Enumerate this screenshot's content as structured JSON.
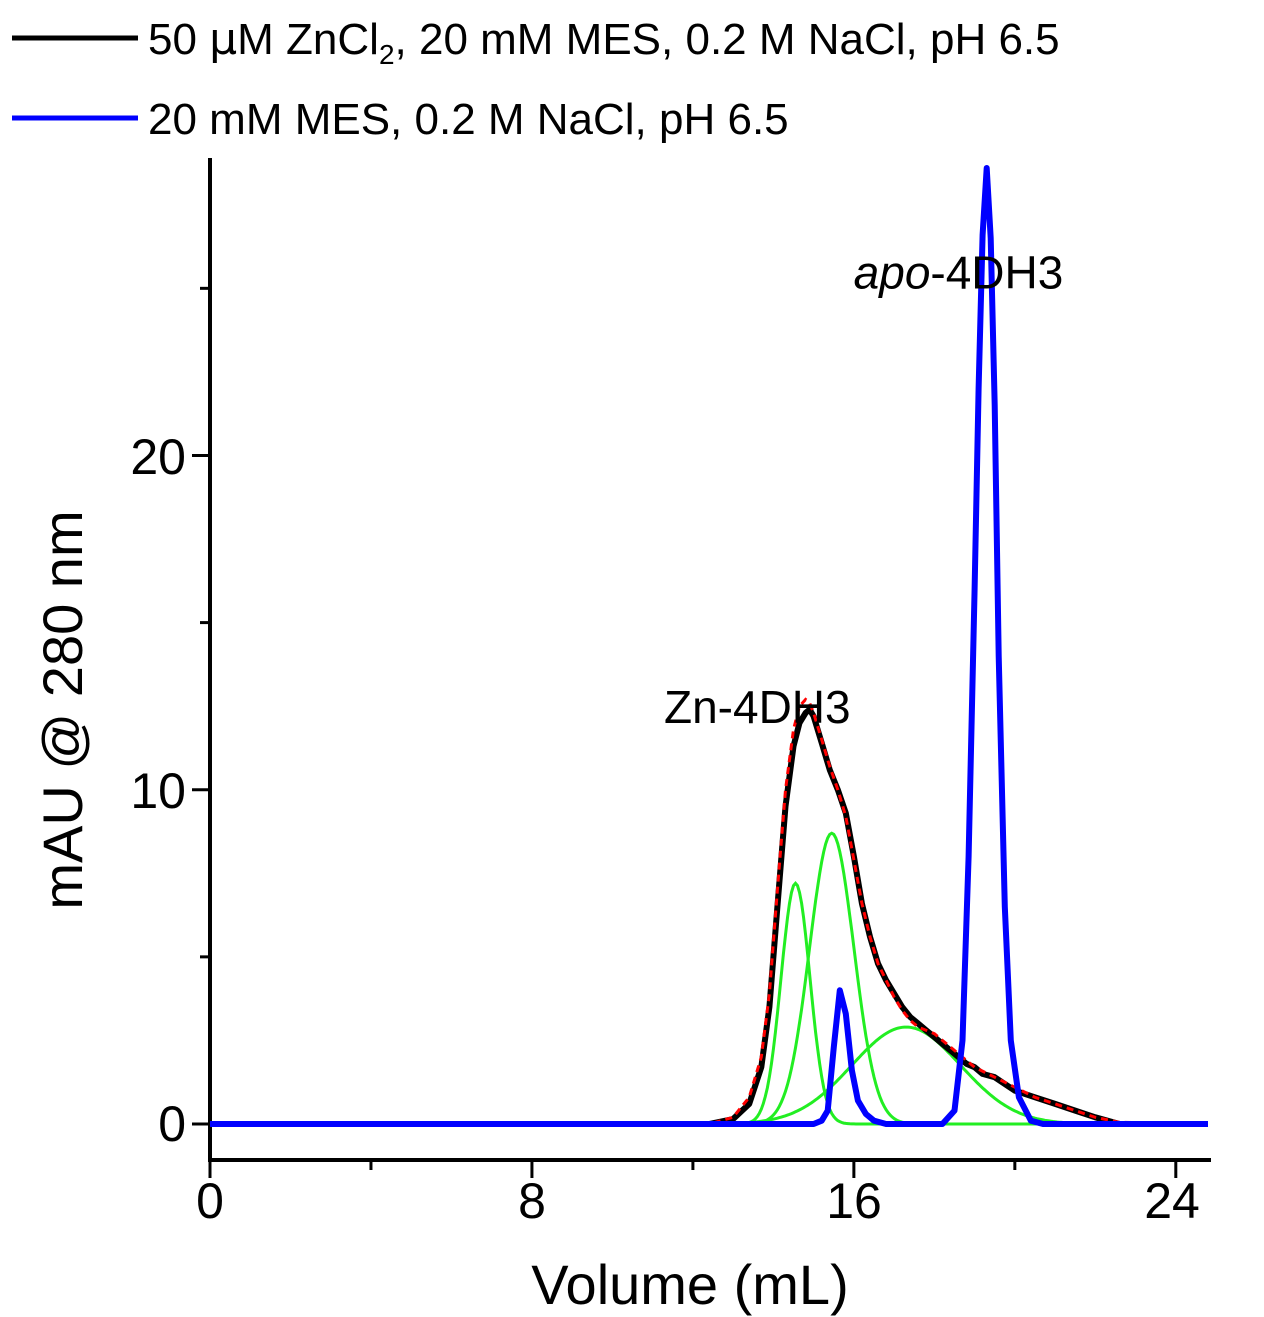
{
  "chart_data": {
    "type": "line",
    "title": "",
    "xlabel": "Volume (mL)",
    "ylabel": "mAU @ 280 nm",
    "xlim": [
      0,
      24.8
    ],
    "ylim": [
      -0.9,
      28.7
    ],
    "x_ticks": [
      "0",
      "8",
      "16",
      "24"
    ],
    "y_ticks": [
      "0",
      "10",
      "20"
    ],
    "legend": {
      "placement": "top-left",
      "entries": [
        {
          "series": "zn",
          "prefix": "50 ",
          "mu": "μ",
          "mid": "M ZnCl",
          "sub": "2",
          "suffix": ", 20 mM MES, 0.2 M NaCl, pH 6.5",
          "color": "#000000"
        },
        {
          "series": "apo",
          "label": "20 mM MES, 0.2 M NaCl, pH 6.5",
          "color": "#0000ff"
        }
      ]
    },
    "annotations": [
      {
        "prefix": "apo",
        "suffix": "-4DH3",
        "x": 18.6,
        "y": 25.0
      },
      {
        "text": "Zn-4DH3",
        "x": 13.6,
        "y": 12.0
      }
    ],
    "series": [
      {
        "name": "50 μM ZnCl2, 20 mM MES, 0.2 M NaCl, pH 6.5",
        "key": "zn",
        "color": "#000000",
        "x": [
          0,
          12.4,
          13.0,
          13.4,
          13.7,
          13.9,
          14.1,
          14.3,
          14.5,
          14.65,
          14.8,
          14.9,
          15.0,
          15.2,
          15.4,
          15.6,
          15.8,
          16.0,
          16.2,
          16.4,
          16.6,
          16.8,
          17.0,
          17.2,
          17.4,
          17.6,
          17.8,
          18.0,
          18.2,
          18.4,
          18.6,
          18.8,
          19.0,
          19.2,
          19.5,
          20.0,
          20.5,
          21.0,
          21.5,
          22.0,
          22.3,
          22.6,
          24.8
        ],
        "y": [
          0,
          0,
          0.15,
          0.6,
          1.7,
          3.5,
          6.5,
          9.5,
          11.3,
          12.0,
          12.3,
          12.4,
          12.2,
          11.4,
          10.6,
          10.0,
          9.3,
          8.0,
          6.6,
          5.6,
          4.8,
          4.3,
          3.9,
          3.5,
          3.2,
          3.0,
          2.8,
          2.6,
          2.4,
          2.2,
          2.0,
          1.8,
          1.7,
          1.5,
          1.4,
          1.0,
          0.8,
          0.6,
          0.4,
          0.2,
          0.1,
          0,
          0
        ]
      },
      {
        "name": "20 mM MES, 0.2 M NaCl, pH 6.5",
        "key": "apo",
        "color": "#0000ff",
        "x": [
          0,
          14.6,
          15.0,
          15.2,
          15.35,
          15.5,
          15.65,
          15.8,
          15.95,
          16.1,
          16.3,
          16.5,
          16.8,
          18.2,
          18.5,
          18.7,
          18.85,
          19.0,
          19.1,
          19.2,
          19.3,
          19.4,
          19.5,
          19.6,
          19.75,
          19.9,
          20.1,
          20.4,
          20.7,
          24.8
        ],
        "y": [
          0,
          0,
          0,
          0.1,
          0.4,
          2.3,
          4.0,
          3.3,
          1.6,
          0.7,
          0.3,
          0.1,
          0,
          0,
          0.4,
          2.5,
          8.0,
          16.0,
          22.0,
          26.6,
          28.6,
          26.5,
          21.5,
          14.0,
          6.5,
          2.5,
          0.8,
          0.1,
          0,
          0
        ]
      },
      {
        "name": "fit",
        "key": "fit",
        "color": "#ff0000",
        "dashed": true,
        "x": [
          0,
          12.4,
          13.0,
          13.4,
          13.7,
          13.9,
          14.1,
          14.3,
          14.5,
          14.65,
          14.8,
          14.9,
          15.0,
          15.2,
          15.4,
          15.6,
          15.8,
          16.0,
          16.2,
          16.4,
          16.6,
          16.8,
          17.0,
          17.2,
          17.4,
          17.6,
          17.8,
          18.0,
          18.2,
          18.4,
          18.6,
          18.8,
          19.0,
          19.5,
          20.0,
          20.5,
          21.0,
          21.5,
          22.0,
          22.6,
          24.8
        ],
        "y": [
          0,
          0,
          0.2,
          0.8,
          2.0,
          3.9,
          7.0,
          10.0,
          11.8,
          12.5,
          12.7,
          12.6,
          12.3,
          11.5,
          10.7,
          10.0,
          9.2,
          7.9,
          6.6,
          5.6,
          4.8,
          4.3,
          3.8,
          3.4,
          3.1,
          2.9,
          2.8,
          2.7,
          2.5,
          2.3,
          2.1,
          1.9,
          1.7,
          1.4,
          1.1,
          0.8,
          0.6,
          0.4,
          0.2,
          0.05,
          0
        ]
      },
      {
        "name": "gaussian-1",
        "key": "g1",
        "color": "#22ee22",
        "gaussian": {
          "center": 14.55,
          "amplitude": 7.2,
          "sigma": 0.36
        }
      },
      {
        "name": "gaussian-2",
        "key": "g2",
        "color": "#22ee22",
        "gaussian": {
          "center": 15.45,
          "amplitude": 8.7,
          "sigma": 0.55
        }
      },
      {
        "name": "gaussian-3",
        "key": "g3",
        "color": "#22ee22",
        "gaussian": {
          "center": 17.3,
          "amplitude": 2.9,
          "sigma": 1.35
        }
      }
    ]
  }
}
